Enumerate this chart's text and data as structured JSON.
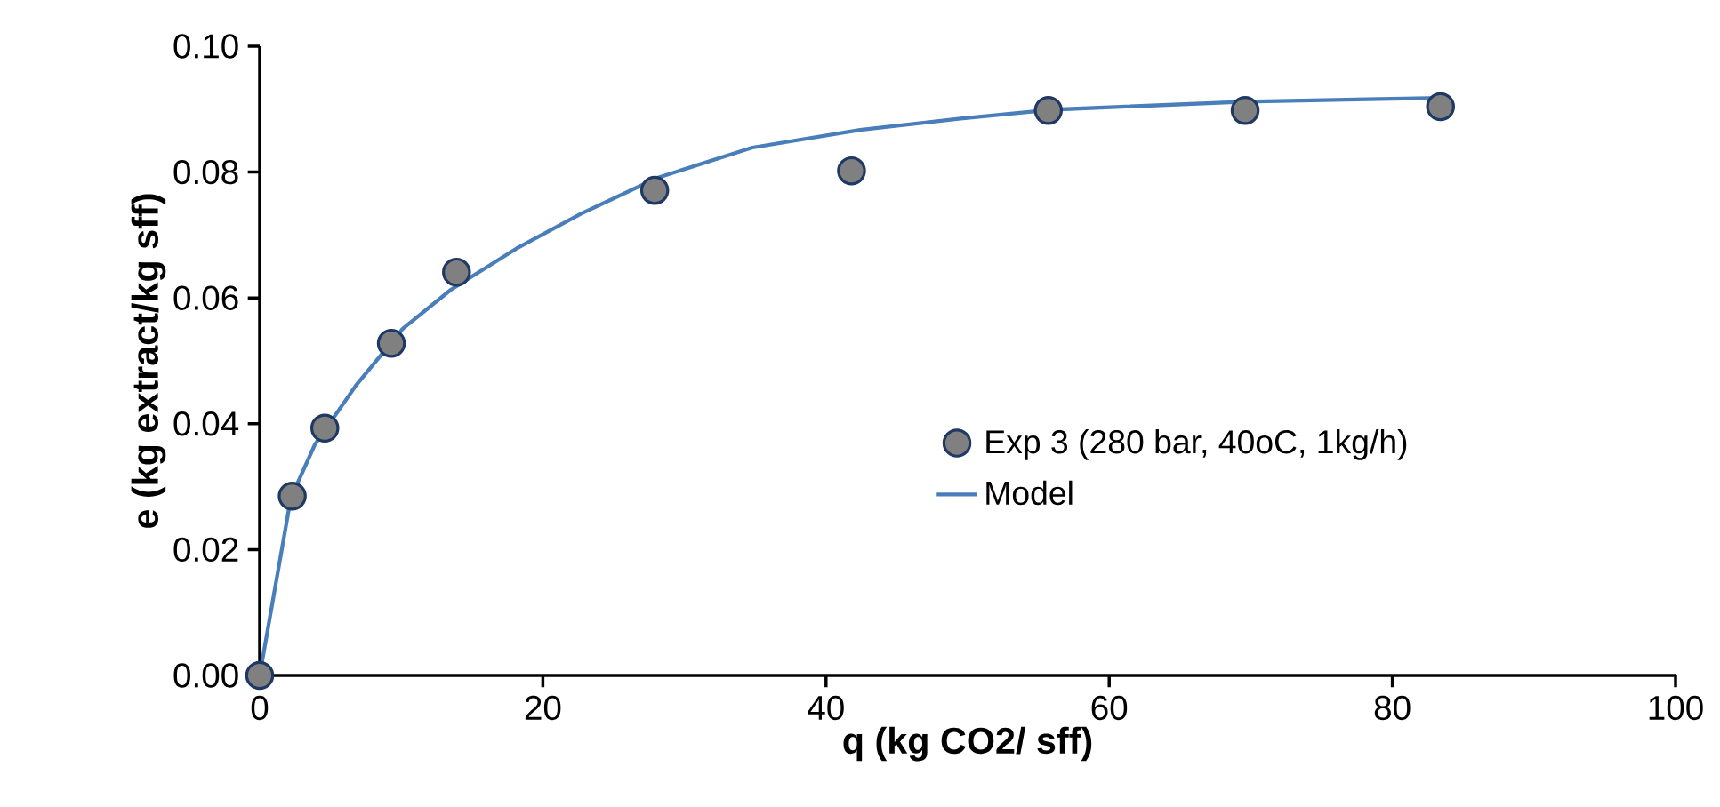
{
  "chart_data": {
    "type": "scatter",
    "xlabel": "q (kg CO2/ sff)",
    "ylabel": "e (kg extract/kg sff)",
    "xlim": [
      0,
      100
    ],
    "ylim": [
      0,
      0.1
    ],
    "xticks": [
      0,
      20,
      40,
      60,
      80,
      100
    ],
    "yticks": [
      {
        "value": 0,
        "label": "0.00"
      },
      {
        "value": 0.02,
        "label": "0.02"
      },
      {
        "value": 0.04,
        "label": "0.04"
      },
      {
        "value": 0.06,
        "label": "0.06"
      },
      {
        "value": 0.08,
        "label": "0.08"
      },
      {
        "value": 0.1,
        "label": "0.10"
      }
    ],
    "grid": false,
    "legend": "right",
    "series": [
      {
        "name": "Exp 3 (280 bar, 40oC, 1kg/h)",
        "marker": "circle",
        "color": "#808080",
        "x": [
          0,
          2.3,
          4.6,
          9.3,
          13.9,
          27.9,
          41.8,
          55.7,
          69.6,
          83.4
        ],
        "values": [
          0,
          0.0285,
          0.0393,
          0.0528,
          0.0641,
          0.0771,
          0.0802,
          0.0898,
          0.0898,
          0.0904
        ]
      },
      {
        "name": "Model",
        "type": "line",
        "marker": "none",
        "line_style": "solid",
        "color": "#4a7ebb",
        "x": [
          0,
          2.2,
          3.9,
          6.8,
          10.1,
          13.5,
          18.1,
          22.7,
          28.1,
          34.8,
          42.4,
          49.5,
          55.8,
          69.6,
          83.4
        ],
        "values": [
          0,
          0.0282,
          0.0367,
          0.0461,
          0.0551,
          0.0613,
          0.0678,
          0.0734,
          0.0791,
          0.0839,
          0.0867,
          0.0885,
          0.0899,
          0.0912,
          0.0918
        ]
      }
    ]
  }
}
